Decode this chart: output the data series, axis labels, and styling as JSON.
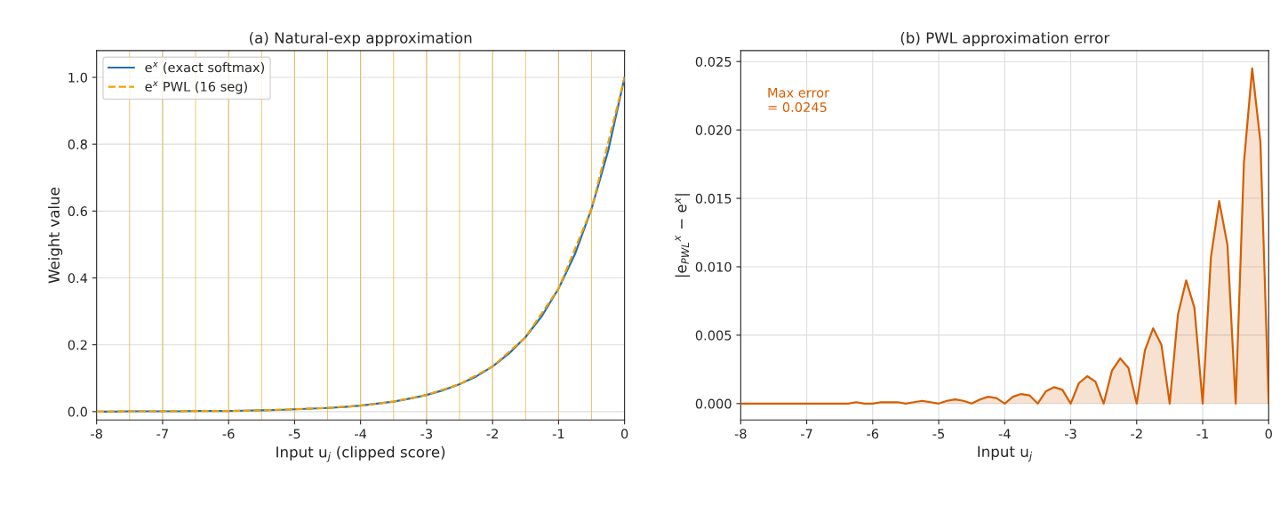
{
  "chart_data": [
    {
      "type": "line",
      "title": "(a) Natural-exp approximation",
      "xlabel": "Input u$_{j}$ (clipped score)",
      "ylabel": "Weight value",
      "xlim": [
        -8,
        0
      ],
      "ylim": [
        -0.025,
        1.08
      ],
      "xticks": [
        -8,
        -7,
        -6,
        -5,
        -4,
        -3,
        -2,
        -1,
        0
      ],
      "yticks": [
        {
          "value": 0,
          "label": "0.0"
        },
        {
          "value": 0.2,
          "label": "0.2"
        },
        {
          "value": 0.4,
          "label": "0.4"
        },
        {
          "value": 0.6,
          "label": "0.6"
        },
        {
          "value": 0.8,
          "label": "0.8"
        },
        {
          "value": 1,
          "label": "1.0"
        }
      ],
      "grid": true,
      "legend": "top left",
      "ref_lines": [
        {
          "axis": "x",
          "value": -7.5,
          "color": "#e69f00"
        },
        {
          "axis": "x",
          "value": -7,
          "color": "#e69f00"
        },
        {
          "axis": "x",
          "value": -6.5,
          "color": "#e69f00"
        },
        {
          "axis": "x",
          "value": -6,
          "color": "#e69f00"
        },
        {
          "axis": "x",
          "value": -5.5,
          "color": "#e69f00"
        },
        {
          "axis": "x",
          "value": -5,
          "color": "#e69f00"
        },
        {
          "axis": "x",
          "value": -4.5,
          "color": "#e69f00"
        },
        {
          "axis": "x",
          "value": -4,
          "color": "#e69f00"
        },
        {
          "axis": "x",
          "value": -3.5,
          "color": "#e69f00"
        },
        {
          "axis": "x",
          "value": -3,
          "color": "#e69f00"
        },
        {
          "axis": "x",
          "value": -2.5,
          "color": "#e69f00"
        },
        {
          "axis": "x",
          "value": -2,
          "color": "#e69f00"
        },
        {
          "axis": "x",
          "value": -1.5,
          "color": "#e69f00"
        },
        {
          "axis": "x",
          "value": -1,
          "color": "#e69f00"
        },
        {
          "axis": "x",
          "value": -0.5,
          "color": "#e69f00"
        }
      ],
      "series": [
        {
          "name": "e$^{x}$ (exact softmax)",
          "color": "#1f6fb4",
          "line_style": "solid",
          "x": [
            -8,
            -7.75,
            -7.5,
            -7.25,
            -7,
            -6.75,
            -6.5,
            -6.25,
            -6,
            -5.75,
            -5.5,
            -5.25,
            -5,
            -4.75,
            -4.5,
            -4.25,
            -4,
            -3.75,
            -3.5,
            -3.25,
            -3,
            -2.75,
            -2.5,
            -2.25,
            -2,
            -1.75,
            -1.5,
            -1.25,
            -1,
            -0.75,
            -0.5,
            -0.25,
            0
          ],
          "values": [
            0.0,
            0.0,
            0.001,
            0.001,
            0.001,
            0.001,
            0.002,
            0.002,
            0.002,
            0.003,
            0.004,
            0.005,
            0.007,
            0.009,
            0.011,
            0.014,
            0.018,
            0.024,
            0.03,
            0.039,
            0.05,
            0.064,
            0.082,
            0.105,
            0.135,
            0.174,
            0.223,
            0.287,
            0.368,
            0.472,
            0.607,
            0.779,
            1.0
          ]
        },
        {
          "name": "e$^{x}$ PWL (16 seg)",
          "color": "#f0a000",
          "line_style": "dashed",
          "x": [
            -8,
            -7.5,
            -7,
            -6.5,
            -6,
            -5.5,
            -5,
            -4.5,
            -4,
            -3.5,
            -3,
            -2.5,
            -2,
            -1.5,
            -1,
            -0.5,
            0
          ],
          "values": [
            0.0,
            0.001,
            0.001,
            0.002,
            0.002,
            0.004,
            0.007,
            0.011,
            0.018,
            0.03,
            0.05,
            0.082,
            0.135,
            0.223,
            0.368,
            0.607,
            1.0
          ]
        }
      ]
    },
    {
      "type": "area",
      "title": "(b) PWL approximation error",
      "xlabel": "Input u$_{j}$",
      "ylabel": "|e$_{PWL}$$^{x}$ − e$^{x}$|",
      "xlim": [
        -8,
        0
      ],
      "ylim": [
        -0.0012,
        0.0258
      ],
      "xticks": [
        -8,
        -7,
        -6,
        -5,
        -4,
        -3,
        -2,
        -1,
        0
      ],
      "yticks": [
        {
          "value": 0,
          "label": "0.000"
        },
        {
          "value": 0.005,
          "label": "0.005"
        },
        {
          "value": 0.01,
          "label": "0.010"
        },
        {
          "value": 0.015,
          "label": "0.015"
        },
        {
          "value": 0.02,
          "label": "0.020"
        },
        {
          "value": 0.025,
          "label": "0.025"
        }
      ],
      "grid": true,
      "annotations": [
        "Max error\n= 0.0245"
      ],
      "series": [
        {
          "color": "#d55e00",
          "line_style": "solid",
          "x": [
            -8,
            -7.875,
            -7.75,
            -7.625,
            -7.5,
            -7.375,
            -7.25,
            -7.125,
            -7,
            -6.875,
            -6.75,
            -6.625,
            -6.5,
            -6.375,
            -6.25,
            -6.125,
            -6,
            -5.875,
            -5.75,
            -5.625,
            -5.5,
            -5.375,
            -5.25,
            -5.125,
            -5,
            -4.875,
            -4.75,
            -4.625,
            -4.5,
            -4.375,
            -4.25,
            -4.125,
            -4,
            -3.875,
            -3.75,
            -3.625,
            -3.5,
            -3.375,
            -3.25,
            -3.125,
            -3,
            -2.875,
            -2.75,
            -2.625,
            -2.5,
            -2.375,
            -2.25,
            -2.125,
            -2,
            -1.875,
            -1.75,
            -1.625,
            -1.5,
            -1.375,
            -1.25,
            -1.125,
            -1,
            -0.875,
            -0.75,
            -0.625,
            -0.5,
            -0.375,
            -0.25,
            -0.125,
            0
          ],
          "values": [
            0,
            0,
            0,
            0,
            0,
            0,
            0,
            0,
            0,
            0,
            0,
            0,
            0,
            0,
            0.0001,
            0,
            0,
            0.0001,
            0.0001,
            0.0001,
            0,
            0.0001,
            0.0002,
            0.0001,
            0,
            0.0002,
            0.0003,
            0.0002,
            0,
            0.0003,
            0.0005,
            0.0004,
            0,
            0.0005,
            0.0007,
            0.0006,
            0,
            0.0009,
            0.0012,
            0.001,
            0,
            0.0015,
            0.002,
            0.0016,
            0,
            0.0024,
            0.0033,
            0.0026,
            0,
            0.0039,
            0.0055,
            0.0043,
            0,
            0.0065,
            0.009,
            0.007,
            0,
            0.0107,
            0.0148,
            0.0116,
            0,
            0.0176,
            0.0245,
            0.0191,
            0
          ]
        }
      ]
    }
  ]
}
